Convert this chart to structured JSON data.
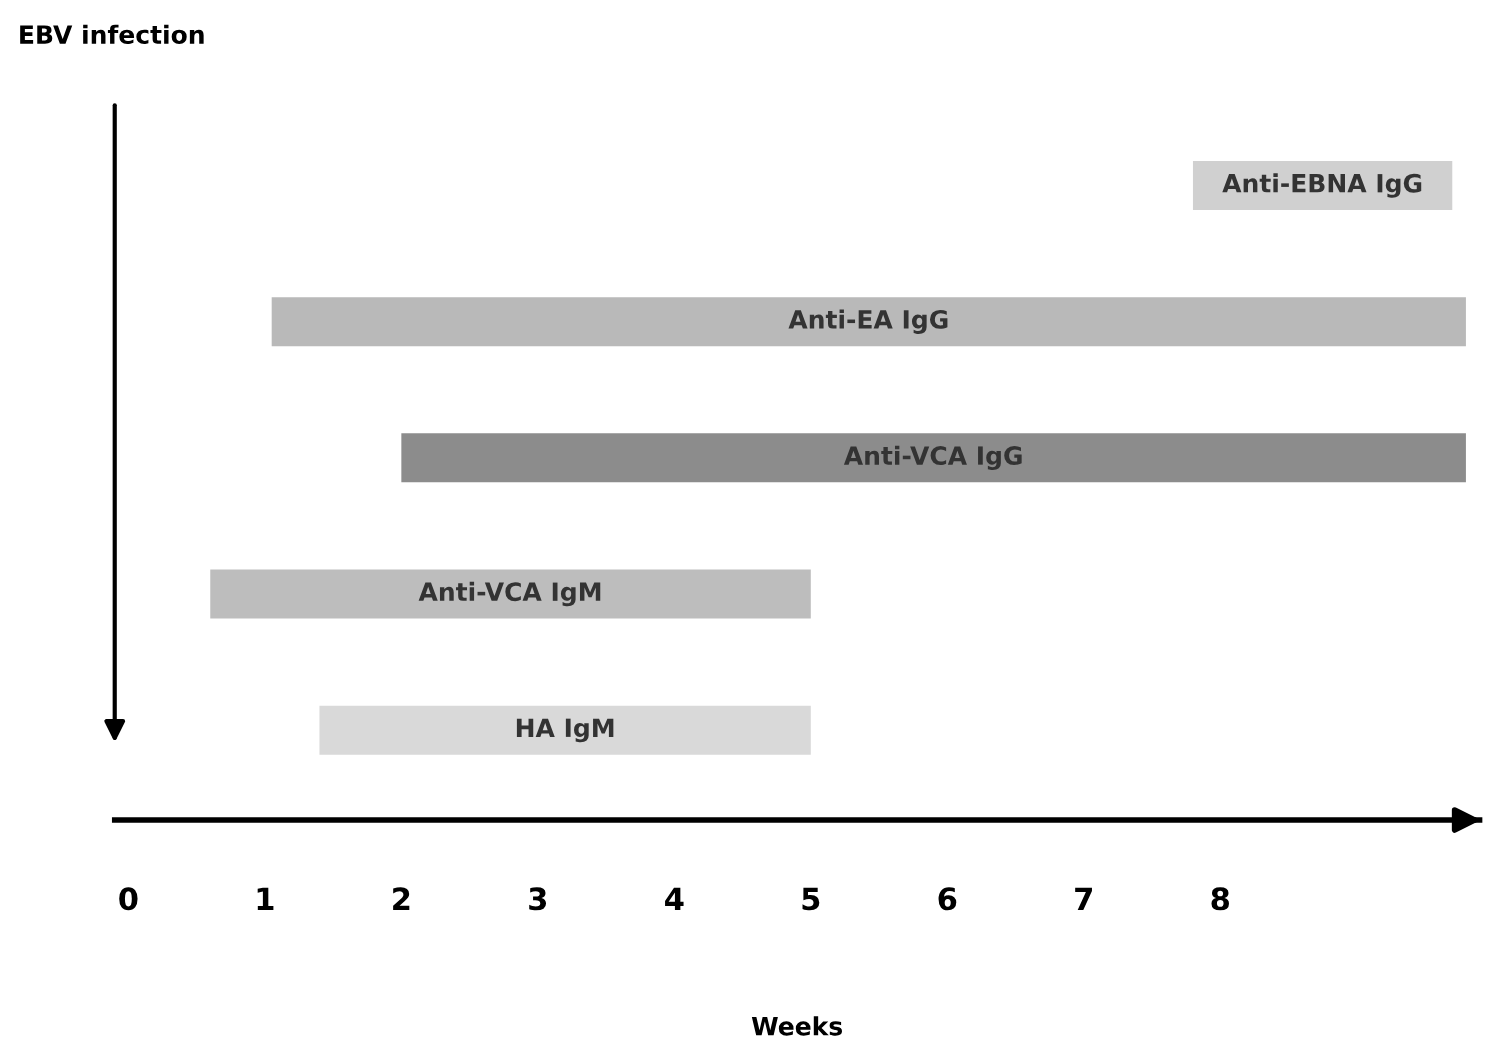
{
  "chart_data": {
    "type": "bar",
    "orientation": "horizontal",
    "title": "EBV infection",
    "xlabel": "Weeks",
    "categories": [
      "Anti-EBNA IgG",
      "Anti-EA IgG",
      "Anti-VCA IgG",
      "Anti-VCA IgM",
      "HA IgM"
    ],
    "base": [
      7.8,
      1.05,
      2.0,
      0.6,
      1.4
    ],
    "values": [
      1.9,
      8.75,
      7.8,
      4.4,
      3.6
    ],
    "colors": [
      "#d0d0d0",
      "#b9b9b9",
      "#8c8c8c",
      "#bdbdbd",
      "#d9d9d9"
    ],
    "xlim": [
      -0.1,
      9.9
    ],
    "xticks": [
      0,
      1,
      2,
      3,
      4,
      5,
      6,
      7,
      8
    ],
    "tick_labels": "x"
  }
}
